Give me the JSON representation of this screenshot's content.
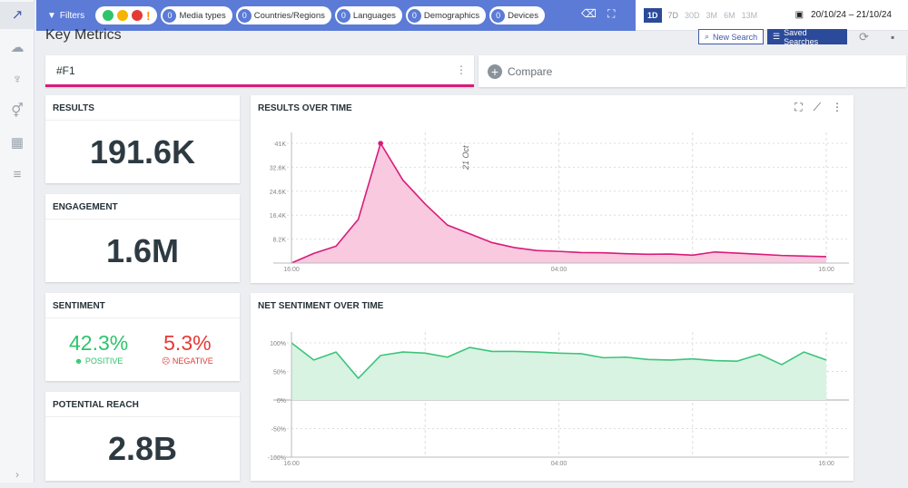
{
  "sidebar": {
    "items": [
      "trend-icon",
      "cloud-icon",
      "influencer-icon",
      "gender-icon",
      "map-icon",
      "search-list-icon"
    ],
    "expand": "›"
  },
  "filters": {
    "label": "Filters",
    "sentiment_icons": [
      "positive",
      "neutral",
      "negative",
      "alert"
    ],
    "pills": [
      {
        "count": "0",
        "label": "Media types"
      },
      {
        "count": "0",
        "label": "Countries/Regions"
      },
      {
        "count": "0",
        "label": "Languages"
      },
      {
        "count": "0",
        "label": "Demographics"
      },
      {
        "count": "0",
        "label": "Devices"
      }
    ]
  },
  "ranges": [
    "1D",
    "7D",
    "30D",
    "3M",
    "6M",
    "13M"
  ],
  "active_range": "1D",
  "date_range": "20/10/24 – 21/10/24",
  "page_title": "Key Metrics",
  "buttons": {
    "new_search": "New Search",
    "saved_searches": "Saved Searches"
  },
  "query": {
    "value": "#F1",
    "compare": "Compare",
    "accent": "#d81b7a"
  },
  "metrics": {
    "results": {
      "label": "RESULTS",
      "value": "191.6K"
    },
    "engagement": {
      "label": "ENGAGEMENT",
      "value": "1.6M"
    },
    "sentiment": {
      "label": "SENTIMENT",
      "positive": "42.3%",
      "positive_label": "POSITIVE",
      "negative": "5.3%",
      "negative_label": "NEGATIVE",
      "positive_color": "#2ec46b",
      "negative_color": "#e53935"
    },
    "reach": {
      "label": "POTENTIAL REACH",
      "value": "2.8B"
    }
  },
  "chart_data": [
    {
      "type": "area",
      "title": "RESULTS OVER TIME",
      "color": "#d81b7a",
      "fill": "#f9c9df",
      "x": [
        "16:00",
        "17:00",
        "18:00",
        "19:00",
        "20:00",
        "21:00",
        "22:00",
        "23:00",
        "00:00",
        "01:00",
        "02:00",
        "03:00",
        "04:00",
        "05:00",
        "06:00",
        "07:00",
        "08:00",
        "09:00",
        "10:00",
        "11:00",
        "12:00",
        "13:00",
        "14:00",
        "15:00",
        "16:00"
      ],
      "values": [
        0,
        3300,
        5800,
        15000,
        41000,
        28400,
        20200,
        13000,
        10000,
        7000,
        5300,
        4300,
        4000,
        3600,
        3500,
        3200,
        3000,
        3100,
        2700,
        3800,
        3400,
        3000,
        2600,
        2400,
        2200
      ],
      "yticks": [
        "8.2K",
        "16.4K",
        "24.6K",
        "32.8K",
        "41K"
      ],
      "ytick_values": [
        8200,
        16400,
        24600,
        32800,
        41000
      ],
      "xticks": [
        "16:00",
        "04:00",
        "16:00"
      ],
      "ylim": [
        0,
        41000
      ],
      "annotation": "21 Oct",
      "grid": true
    },
    {
      "type": "area",
      "title": "NET SENTIMENT OVER TIME",
      "color": "#3cc47a",
      "fill": "#d8f3e2",
      "x": [
        "16:00",
        "17:00",
        "18:00",
        "19:00",
        "20:00",
        "21:00",
        "22:00",
        "23:00",
        "00:00",
        "01:00",
        "02:00",
        "03:00",
        "04:00",
        "05:00",
        "06:00",
        "07:00",
        "08:00",
        "09:00",
        "10:00",
        "11:00",
        "12:00",
        "13:00",
        "14:00",
        "15:00",
        "16:00"
      ],
      "values": [
        100,
        70,
        84,
        38,
        78,
        84,
        82,
        75,
        92,
        85,
        85,
        84,
        82,
        81,
        74,
        75,
        71,
        70,
        72,
        69,
        68,
        80,
        62,
        84,
        70
      ],
      "yticks": [
        "100%",
        "50%",
        "0%",
        "-50%",
        "-100%"
      ],
      "ytick_values": [
        100,
        50,
        0,
        -50,
        -100
      ],
      "xticks": [
        "16:00",
        "04:00",
        "16:00"
      ],
      "ylim": [
        -100,
        100
      ],
      "grid": true
    }
  ]
}
